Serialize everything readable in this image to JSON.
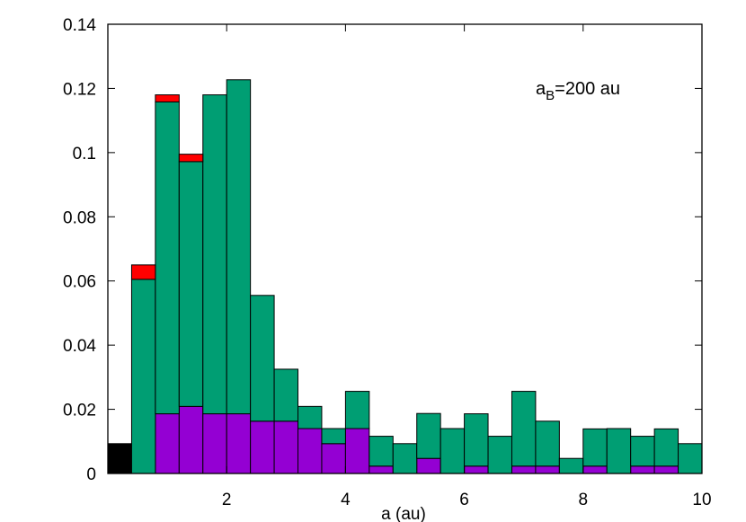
{
  "chart_data": {
    "type": "bar",
    "stacked": true,
    "xlabel": "a (au)",
    "ylabel": "",
    "xlim": [
      0,
      10
    ],
    "ylim": [
      0,
      0.14
    ],
    "bin_width": 0.4,
    "x_ticks": [
      2,
      4,
      6,
      8,
      10
    ],
    "y_ticks": [
      0,
      0.02,
      0.04,
      0.06,
      0.08,
      0.1,
      0.12,
      0.14
    ],
    "x_tick_labels": [
      "2",
      "4",
      "6",
      "8",
      "10"
    ],
    "y_tick_labels": [
      "0",
      "0.02",
      "0.04",
      "0.06",
      "0.08",
      "0.1",
      "0.12",
      "0.14"
    ],
    "grid": false,
    "legend": "none",
    "annotation": {
      "main": "a",
      "sub": "B",
      "rest": "=200 au"
    },
    "bin_starts": [
      0,
      0.4,
      0.8,
      1.2,
      1.6,
      2.0,
      2.4,
      2.8,
      3.2,
      3.6,
      4.0,
      4.4,
      4.8,
      5.2,
      5.6,
      6.0,
      6.4,
      6.8,
      7.2,
      7.6,
      8.0,
      8.4,
      8.8,
      9.2,
      9.6
    ],
    "series": [
      {
        "color": "#000000",
        "values": [
          0.0093,
          0,
          0,
          0,
          0,
          0,
          0,
          0,
          0,
          0,
          0,
          0,
          0,
          0,
          0,
          0,
          0,
          0,
          0,
          0,
          0,
          0,
          0,
          0,
          0
        ]
      },
      {
        "color": "#9400d3",
        "values": [
          0,
          0,
          0.0186,
          0.0209,
          0.0186,
          0.0186,
          0.0163,
          0.0163,
          0.014,
          0.0093,
          0.014,
          0.0023,
          0,
          0.0047,
          0,
          0.0023,
          0,
          0.0023,
          0.0023,
          0,
          0.0023,
          0,
          0.0023,
          0.0023,
          0
        ]
      },
      {
        "color": "#009e73",
        "values": [
          0,
          0.0605,
          0.0972,
          0.0763,
          0.0994,
          0.1041,
          0.0392,
          0.0162,
          0.0069,
          0.0047,
          0.0116,
          0.0093,
          0.0093,
          0.014,
          0.014,
          0.0163,
          0.0116,
          0.0233,
          0.014,
          0.0047,
          0.0116,
          0.014,
          0.0093,
          0.0116,
          0.0093
        ]
      },
      {
        "color": "#ff0000",
        "values": [
          0,
          0.0045,
          0.0022,
          0.0023,
          0,
          0,
          0,
          0,
          0,
          0,
          0,
          0,
          0,
          0,
          0,
          0,
          0,
          0,
          0,
          0,
          0,
          0,
          0,
          0,
          0
        ]
      }
    ]
  }
}
